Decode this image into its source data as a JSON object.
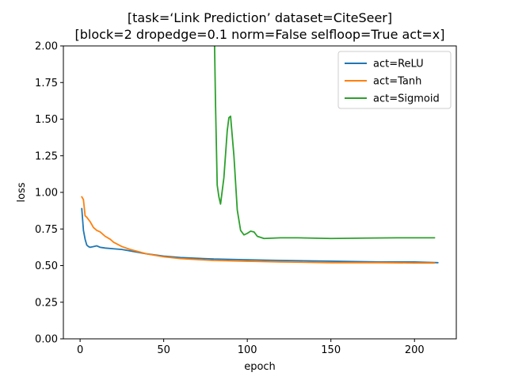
{
  "chart_data": {
    "type": "line",
    "title_lines": [
      "[task=‘Link Prediction’ dataset=CiteSeer]",
      "[block=2 dropedge=0.1 norm=False selfloop=True act=x]"
    ],
    "xlabel": "epoch",
    "ylabel": "loss",
    "xlim": [
      -10,
      225
    ],
    "ylim": [
      0,
      2
    ],
    "xticks": [
      0,
      50,
      100,
      150,
      200
    ],
    "xtick_labels": [
      "0",
      "50",
      "100",
      "150",
      "200"
    ],
    "yticks": [
      0,
      0.25,
      0.5,
      0.75,
      1.0,
      1.25,
      1.5,
      1.75,
      2.0
    ],
    "ytick_labels": [
      "0.00",
      "0.25",
      "0.50",
      "0.75",
      "1.00",
      "1.25",
      "1.50",
      "1.75",
      "2.00"
    ],
    "grid": false,
    "legend_position": "top-right",
    "series": [
      {
        "name": "act=ReLU",
        "color": "#1f77b4",
        "x": [
          1,
          2,
          3,
          4,
          5,
          6,
          8,
          10,
          12,
          15,
          20,
          25,
          30,
          40,
          50,
          60,
          80,
          100,
          120,
          150,
          180,
          200,
          214
        ],
        "y": [
          0.89,
          0.74,
          0.68,
          0.64,
          0.63,
          0.625,
          0.63,
          0.635,
          0.625,
          0.62,
          0.615,
          0.61,
          0.6,
          0.58,
          0.565,
          0.555,
          0.545,
          0.54,
          0.535,
          0.53,
          0.525,
          0.525,
          0.52
        ]
      },
      {
        "name": "act=Tanh",
        "color": "#ff7f0e",
        "x": [
          1,
          2,
          3,
          4,
          6,
          8,
          10,
          12,
          15,
          18,
          20,
          25,
          30,
          40,
          50,
          60,
          80,
          100,
          120,
          150,
          180,
          200,
          212
        ],
        "y": [
          0.97,
          0.95,
          0.84,
          0.83,
          0.8,
          0.76,
          0.74,
          0.73,
          0.7,
          0.68,
          0.66,
          0.63,
          0.61,
          0.58,
          0.56,
          0.548,
          0.535,
          0.53,
          0.525,
          0.52,
          0.52,
          0.518,
          0.518
        ]
      },
      {
        "name": "act=Sigmoid",
        "color": "#2ca02c",
        "x": [
          80,
          81,
          82,
          83,
          84,
          86,
          88,
          89,
          90,
          92,
          94,
          96,
          98,
          100,
          102,
          104,
          106,
          110,
          120,
          130,
          150,
          170,
          190,
          212
        ],
        "y": [
          2.3,
          1.6,
          1.05,
          0.97,
          0.92,
          1.1,
          1.42,
          1.51,
          1.52,
          1.25,
          0.88,
          0.74,
          0.71,
          0.72,
          0.735,
          0.73,
          0.7,
          0.685,
          0.69,
          0.69,
          0.685,
          0.688,
          0.69,
          0.69
        ]
      }
    ]
  }
}
